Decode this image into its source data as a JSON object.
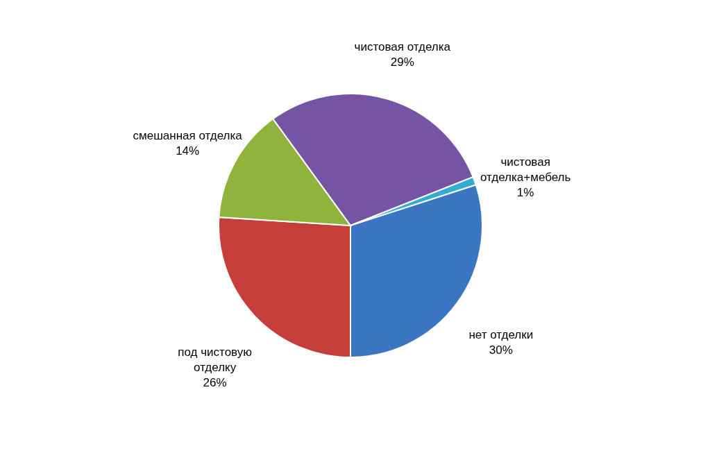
{
  "chart_data": {
    "type": "pie",
    "categories": [
      "нет отделки",
      "под чистовую отделку",
      "смешанная отделка",
      "чистовая отделка",
      "чистовая отделка+мебель"
    ],
    "values": [
      30,
      26,
      14,
      29,
      1
    ],
    "value_labels": [
      "30%",
      "26%",
      "14%",
      "29%",
      "1%"
    ],
    "colors": [
      "#3b76c3",
      "#c63e3a",
      "#8fb33d",
      "#7454a3",
      "#34acd2"
    ],
    "legend": false
  }
}
